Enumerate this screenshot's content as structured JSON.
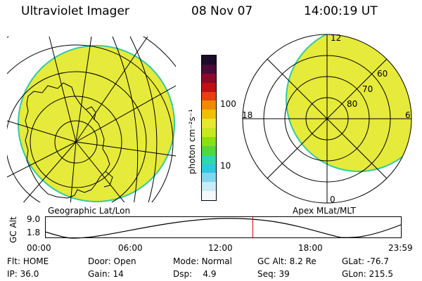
{
  "header": {
    "title": "Ultraviolet Imager",
    "date": "08 Nov 07",
    "time": "14:00:19 UT"
  },
  "left_map": {
    "caption": "Geographic Lat/Lon",
    "fill_color": "#e6ea3a",
    "edge_color": "#35c9a6"
  },
  "colorbar": {
    "unit_label": "photon cm⁻²s⁻¹",
    "tick_labels": [
      "100",
      "10"
    ],
    "colors_top_to_bottom": [
      "#1c0a2a",
      "#4a0a3a",
      "#8a0a2a",
      "#c01010",
      "#e84010",
      "#f08a00",
      "#f0c000",
      "#e8e830",
      "#c8e820",
      "#8ae010",
      "#50d840",
      "#30d8a8",
      "#30c8e0",
      "#80d8f0",
      "#c8ecf8",
      "#f4f8f8"
    ]
  },
  "right_map": {
    "caption": "Apex MLat/MLT",
    "hour_labels": [
      "12",
      "18",
      "6",
      "0"
    ],
    "lat_labels": [
      "60",
      "70",
      "80"
    ]
  },
  "altitude_plot": {
    "ylabel": "GC Alt",
    "y_tick_labels": [
      "9.0",
      "1.8"
    ],
    "x_tick_labels": [
      "00:00",
      "06:00",
      "12:00",
      "18:00",
      "23:59"
    ],
    "current_time_hours": 14.005,
    "marker_color": "#cc0000"
  },
  "info_rows": [
    [
      {
        "label": "Flt:",
        "value": "HOME"
      },
      {
        "label": "Door:",
        "value": "Open"
      },
      {
        "label": "Mode:",
        "value": "Normal"
      },
      {
        "label": "GC Alt:",
        "value": "8.2 Re"
      },
      {
        "label": "GLat:",
        "value": "-76.7"
      }
    ],
    [
      {
        "label": "IP:",
        "value": "36.0"
      },
      {
        "label": "Gain:",
        "value": "14"
      },
      {
        "label": "Dsp:",
        "value": "4.9"
      },
      {
        "label": "Seq:",
        "value": "39"
      },
      {
        "label": "GLon:",
        "value": "215.5"
      }
    ]
  ]
}
